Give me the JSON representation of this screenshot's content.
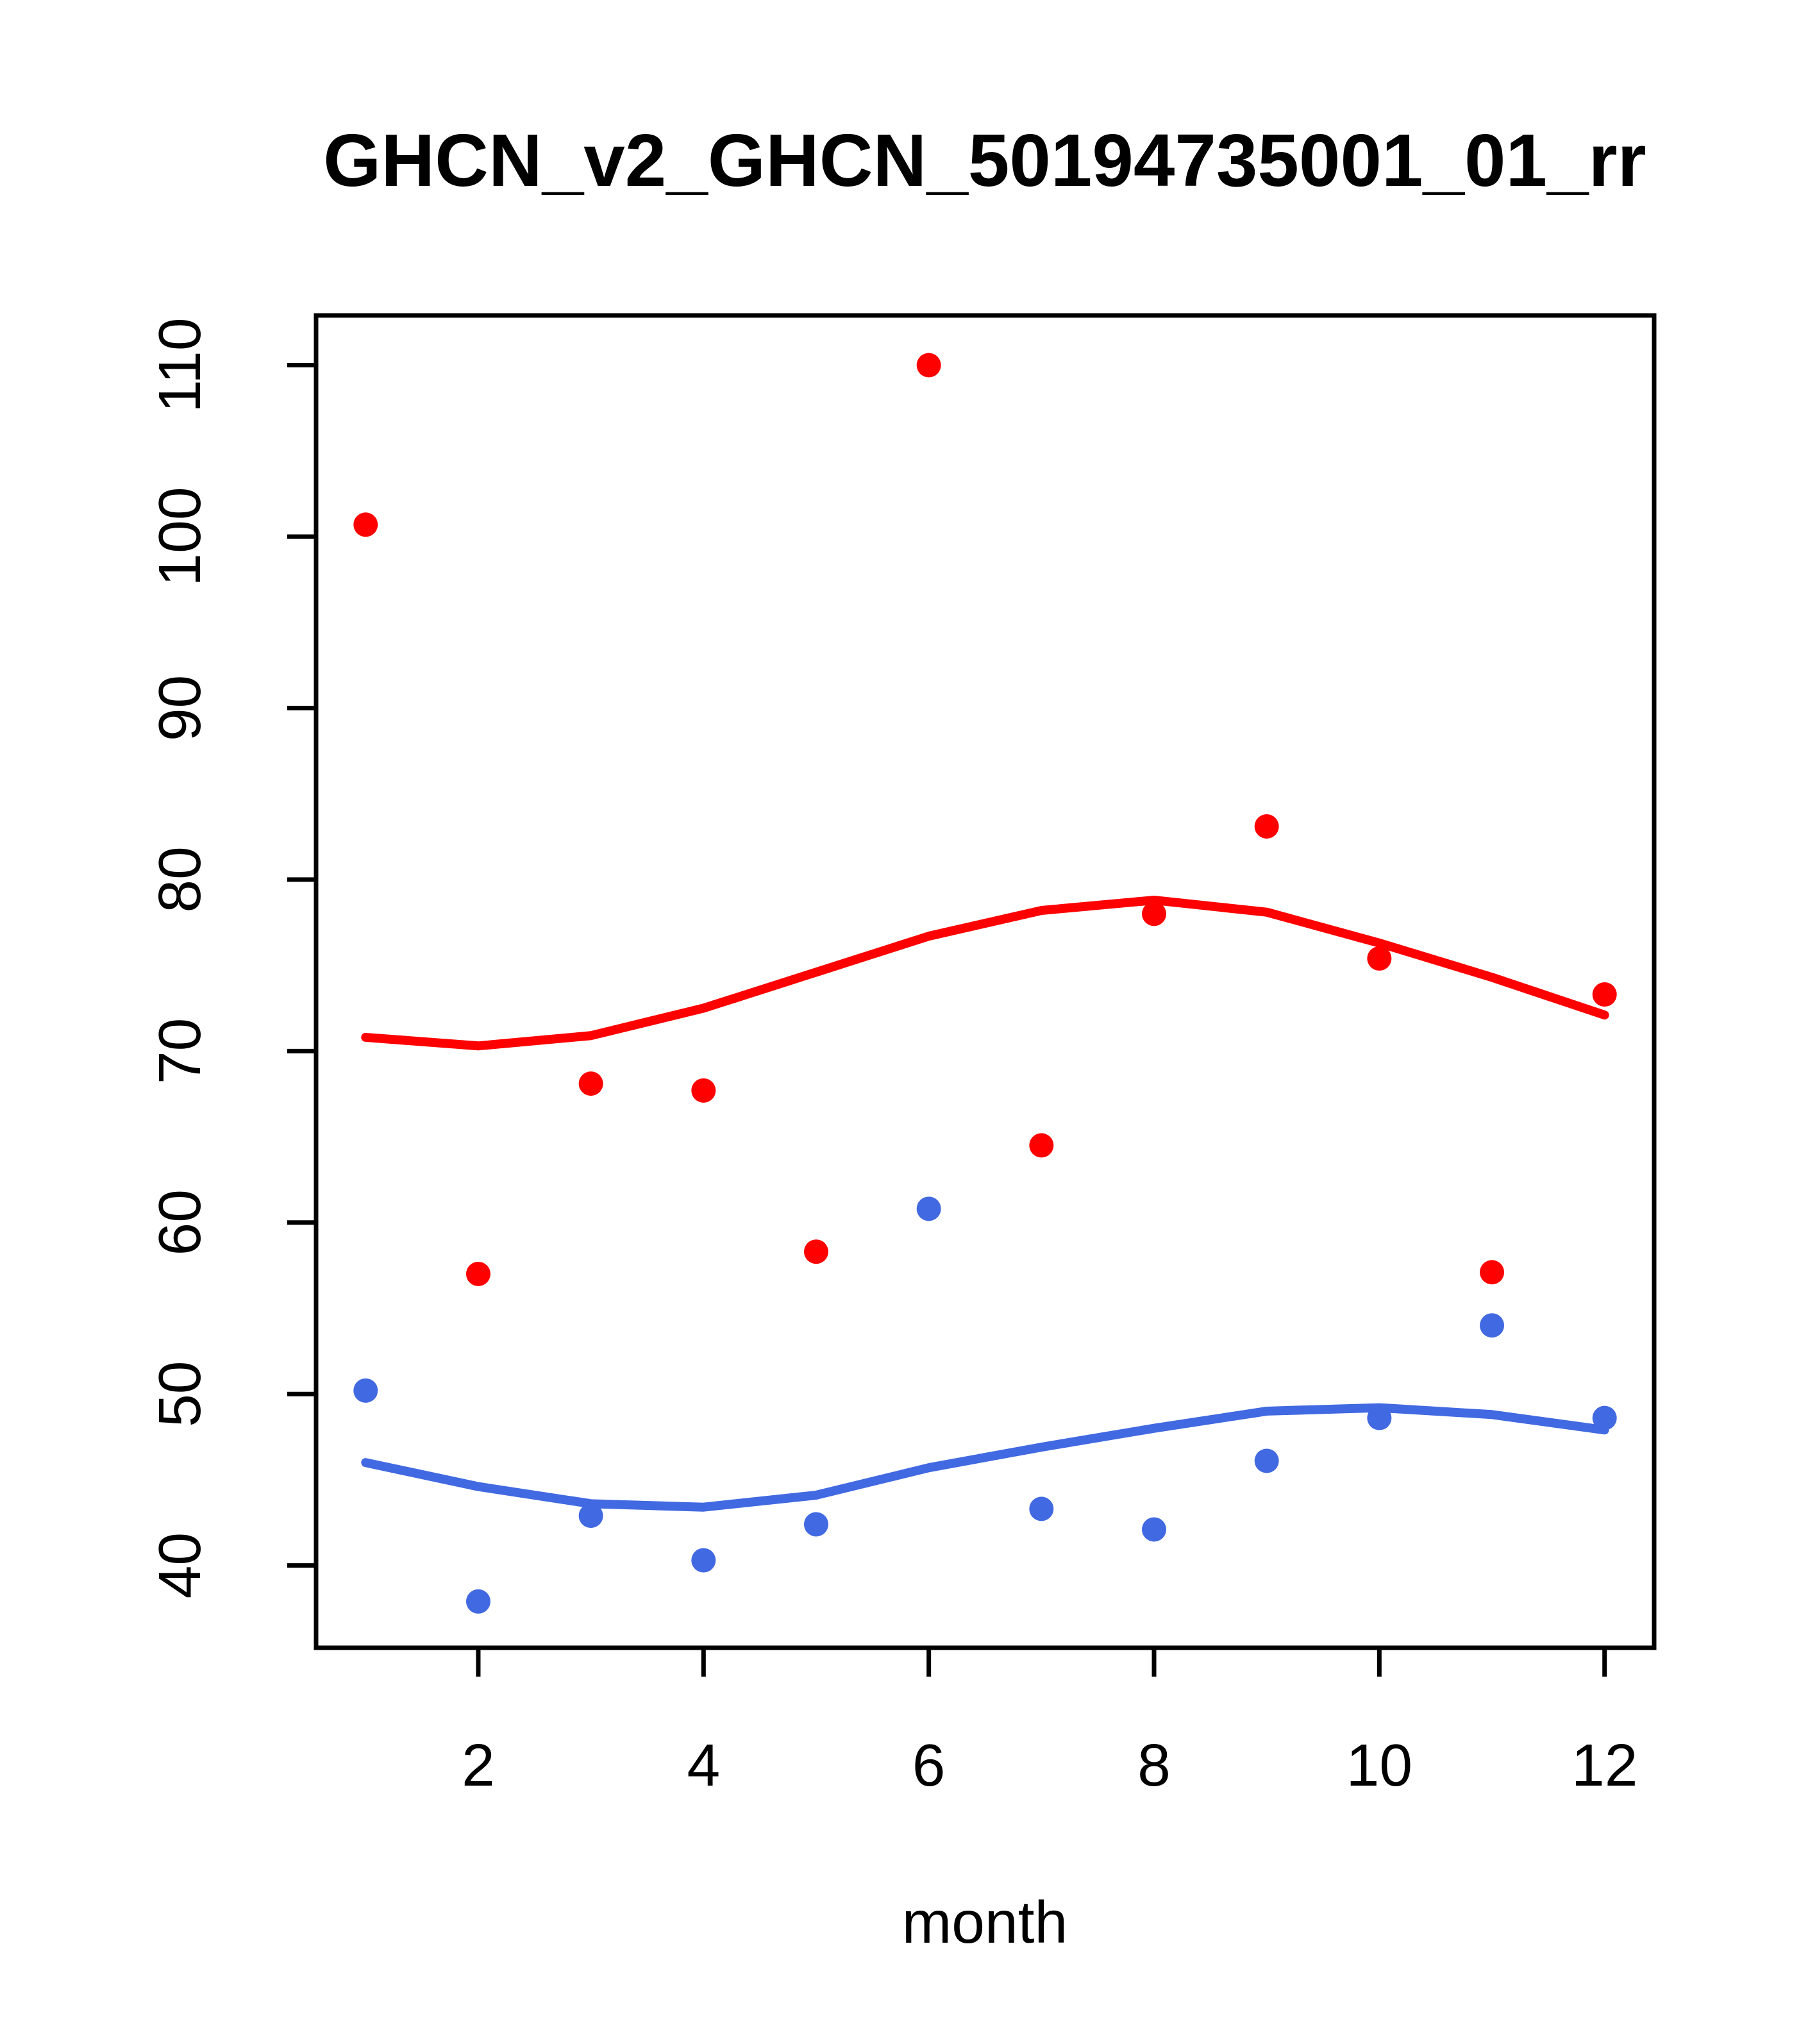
{
  "chart_data": {
    "type": "scatter",
    "title": "GHCN_v2_GHCN_50194735001_01_rr",
    "xlabel": "month",
    "ylabel": "",
    "x": [
      1,
      2,
      3,
      4,
      5,
      6,
      7,
      8,
      9,
      10,
      11,
      12
    ],
    "xticks": [
      2,
      4,
      6,
      8,
      10,
      12
    ],
    "yticks": [
      40,
      50,
      60,
      70,
      80,
      90,
      100,
      110
    ],
    "xlim": [
      0.56,
      12.44
    ],
    "ylim": [
      35.2,
      112.9
    ],
    "grid": false,
    "legend_position": "none",
    "background_color": "#ffffff",
    "frame_color": "#000000",
    "series": [
      {
        "name": "red-points",
        "kind": "scatter",
        "color": "#FF0000",
        "values": [
          100.7,
          57.0,
          68.1,
          67.7,
          58.3,
          110.0,
          64.5,
          78.0,
          83.1,
          75.4,
          57.1,
          73.3
        ]
      },
      {
        "name": "blue-points",
        "kind": "scatter",
        "color": "#4169E1",
        "values": [
          50.2,
          37.9,
          42.9,
          40.3,
          42.4,
          60.8,
          43.3,
          42.1,
          46.1,
          48.6,
          54.0,
          48.6
        ]
      },
      {
        "name": "red-smooth-line",
        "kind": "line",
        "color": "#FF0000",
        "values": [
          70.8,
          70.3,
          70.9,
          72.5,
          74.6,
          76.7,
          78.2,
          78.8,
          78.1,
          76.3,
          74.3,
          72.1
        ]
      },
      {
        "name": "blue-smooth-line",
        "kind": "line",
        "color": "#4169E1",
        "values": [
          46.0,
          44.6,
          43.6,
          43.4,
          44.1,
          45.7,
          46.9,
          48.0,
          49.0,
          49.2,
          48.8,
          47.9
        ]
      }
    ]
  }
}
